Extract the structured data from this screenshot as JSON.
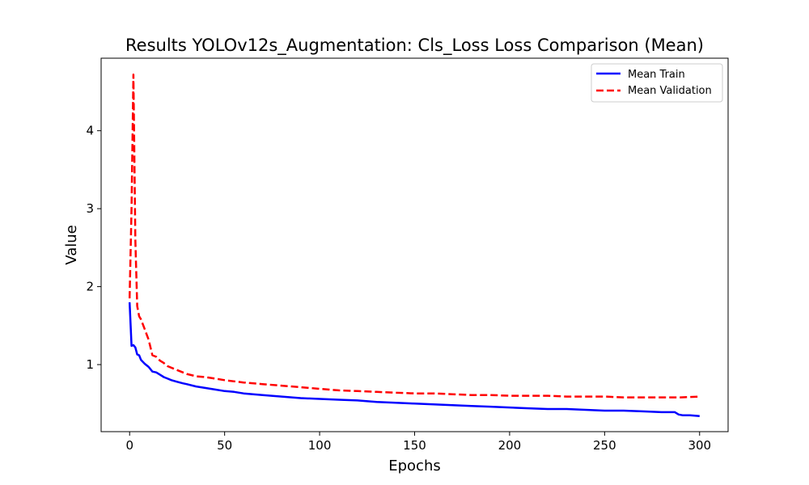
{
  "chart_data": {
    "type": "line",
    "title": "Results YOLOv12s_Augmentation: Cls_Loss Loss Comparison (Mean)",
    "xlabel": "Epochs",
    "ylabel": "Value",
    "xlim": [
      -15,
      315
    ],
    "ylim": [
      0.14,
      4.93
    ],
    "xticks": [
      0,
      50,
      100,
      150,
      200,
      250,
      300
    ],
    "yticks": [
      1,
      2,
      3,
      4
    ],
    "grid": false,
    "legend_position": "top-right",
    "series": [
      {
        "name": "Mean Train",
        "color": "#0000ff",
        "style": "solid",
        "x": [
          0,
          1,
          2,
          3,
          4,
          5,
          6,
          8,
          10,
          12,
          14,
          16,
          18,
          20,
          22,
          25,
          28,
          30,
          35,
          40,
          45,
          50,
          55,
          60,
          70,
          80,
          90,
          100,
          110,
          120,
          130,
          140,
          150,
          160,
          170,
          180,
          190,
          200,
          210,
          220,
          230,
          240,
          250,
          260,
          270,
          280,
          287,
          289,
          291,
          295,
          300
        ],
        "y": [
          1.8,
          1.24,
          1.25,
          1.22,
          1.13,
          1.12,
          1.06,
          1.01,
          0.97,
          0.91,
          0.9,
          0.87,
          0.84,
          0.82,
          0.8,
          0.78,
          0.76,
          0.75,
          0.72,
          0.7,
          0.68,
          0.66,
          0.65,
          0.63,
          0.61,
          0.59,
          0.57,
          0.56,
          0.55,
          0.54,
          0.52,
          0.51,
          0.5,
          0.49,
          0.48,
          0.47,
          0.46,
          0.45,
          0.44,
          0.43,
          0.43,
          0.42,
          0.41,
          0.41,
          0.4,
          0.39,
          0.39,
          0.36,
          0.35,
          0.35,
          0.34
        ]
      },
      {
        "name": "Mean Validation",
        "color": "#ff0000",
        "style": "dashed",
        "x": [
          0,
          1,
          2,
          3,
          4,
          5,
          6,
          8,
          10,
          12,
          14,
          16,
          18,
          20,
          25,
          30,
          35,
          40,
          45,
          50,
          60,
          70,
          80,
          90,
          100,
          110,
          120,
          130,
          140,
          150,
          160,
          170,
          180,
          190,
          200,
          210,
          220,
          230,
          240,
          250,
          260,
          270,
          280,
          290,
          300
        ],
        "y": [
          1.85,
          3.0,
          4.72,
          2.6,
          1.75,
          1.62,
          1.58,
          1.45,
          1.32,
          1.12,
          1.1,
          1.05,
          1.02,
          0.98,
          0.93,
          0.88,
          0.85,
          0.84,
          0.82,
          0.8,
          0.77,
          0.75,
          0.73,
          0.71,
          0.69,
          0.67,
          0.66,
          0.65,
          0.64,
          0.63,
          0.63,
          0.62,
          0.61,
          0.61,
          0.6,
          0.6,
          0.6,
          0.59,
          0.59,
          0.59,
          0.58,
          0.58,
          0.58,
          0.58,
          0.59
        ]
      }
    ]
  }
}
